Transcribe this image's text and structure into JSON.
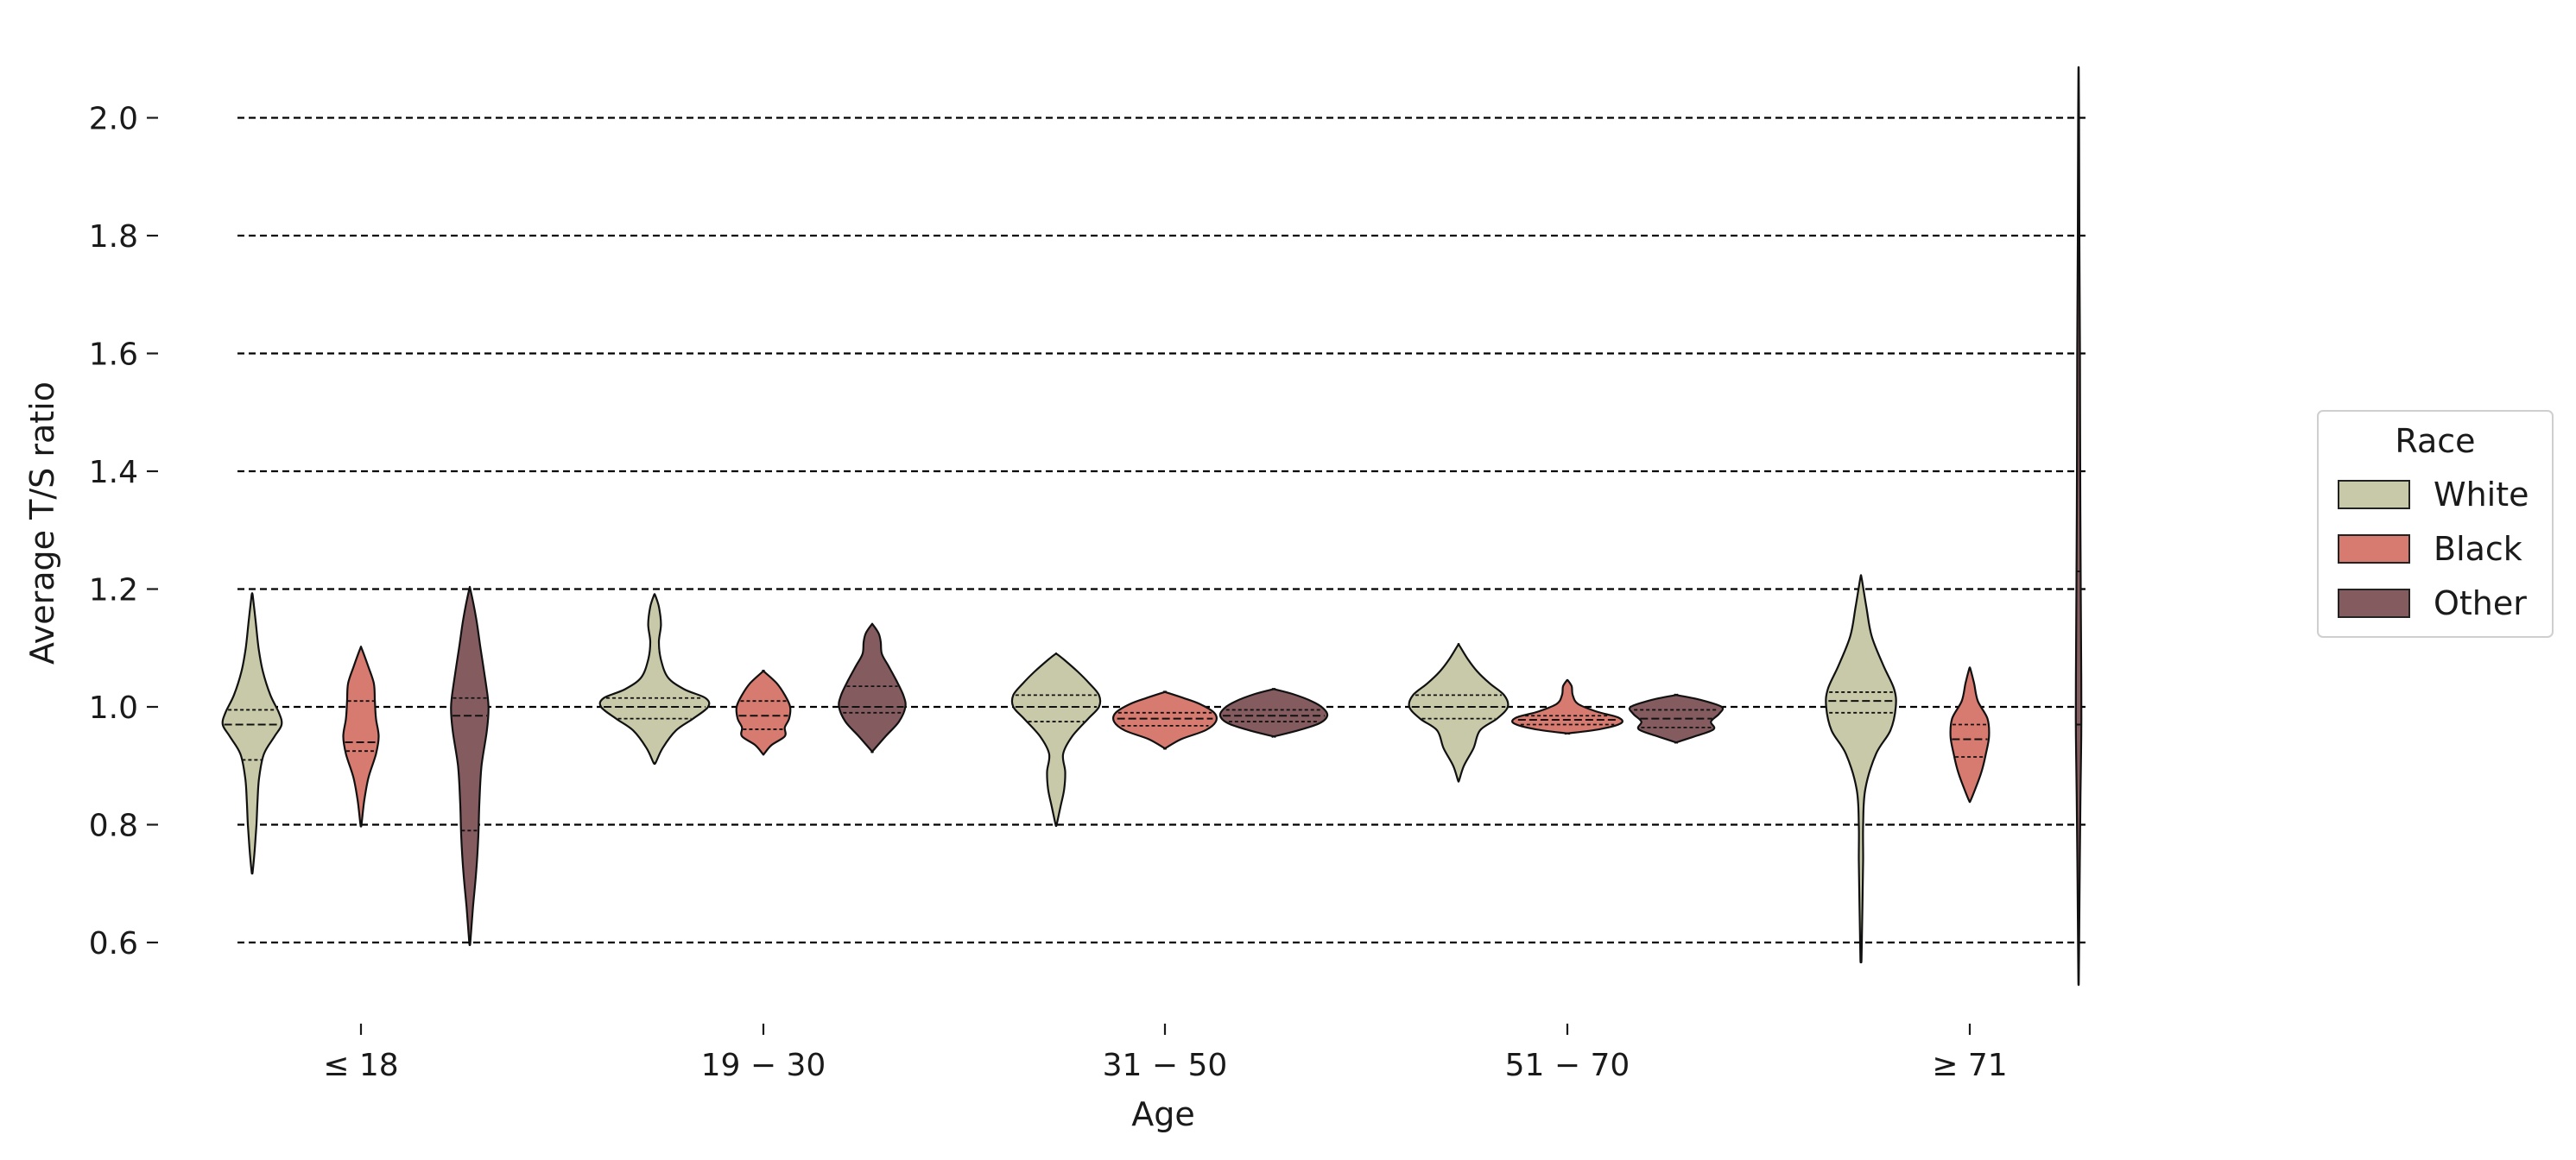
{
  "chart_data": {
    "type": "violin",
    "xlabel": "Age",
    "ylabel": "Average T/S ratio",
    "ylim": [
      0.55,
      2.12
    ],
    "yticks": [
      0.6,
      0.8,
      1.0,
      1.2,
      1.4,
      1.6,
      1.8,
      2.0
    ],
    "ytick_labels": [
      "0.6",
      "0.8",
      "1.0",
      "1.2",
      "1.4",
      "1.6",
      "1.8",
      "2.0"
    ],
    "grid": "horizontal dashed",
    "categories": [
      "≤ 18",
      "19 − 30",
      "31 − 50",
      "51 − 70",
      "≥ 71"
    ],
    "legend": {
      "title": "Race",
      "placement": "right",
      "entries": [
        {
          "name": "White",
          "color": "#c8c9a9"
        },
        {
          "name": "Black",
          "color": "#d77a6f"
        },
        {
          "name": "Other",
          "color": "#845c60"
        }
      ]
    },
    "series": [
      {
        "name": "White",
        "color": "#c8c9a9",
        "violins": [
          {
            "min": 0.72,
            "max": 1.19,
            "q1": 0.91,
            "median": 0.97,
            "q3": 0.995,
            "profile": [
              [
                0.72,
                0.01
              ],
              [
                0.76,
                0.05
              ],
              [
                0.8,
                0.08
              ],
              [
                0.84,
                0.1
              ],
              [
                0.88,
                0.13
              ],
              [
                0.92,
                0.22
              ],
              [
                0.95,
                0.42
              ],
              [
                0.97,
                0.55
              ],
              [
                0.99,
                0.5
              ],
              [
                1.02,
                0.34
              ],
              [
                1.06,
                0.2
              ],
              [
                1.1,
                0.12
              ],
              [
                1.15,
                0.06
              ],
              [
                1.19,
                0.01
              ]
            ]
          },
          {
            "min": 0.905,
            "max": 1.19,
            "q1": 0.98,
            "median": 1.0,
            "q3": 1.015,
            "profile": [
              [
                0.905,
                0.02
              ],
              [
                0.93,
                0.15
              ],
              [
                0.96,
                0.4
              ],
              [
                0.98,
                0.72
              ],
              [
                1.0,
                1.0
              ],
              [
                1.015,
                0.95
              ],
              [
                1.03,
                0.55
              ],
              [
                1.05,
                0.25
              ],
              [
                1.08,
                0.12
              ],
              [
                1.11,
                0.08
              ],
              [
                1.14,
                0.12
              ],
              [
                1.17,
                0.08
              ],
              [
                1.19,
                0.01
              ]
            ]
          },
          {
            "min": 0.8,
            "max": 1.09,
            "q1": 0.975,
            "median": 1.0,
            "q3": 1.02,
            "profile": [
              [
                0.8,
                0.01
              ],
              [
                0.83,
                0.08
              ],
              [
                0.86,
                0.15
              ],
              [
                0.89,
                0.17
              ],
              [
                0.92,
                0.13
              ],
              [
                0.95,
                0.3
              ],
              [
                0.98,
                0.6
              ],
              [
                1.0,
                0.8
              ],
              [
                1.02,
                0.8
              ],
              [
                1.04,
                0.62
              ],
              [
                1.06,
                0.4
              ],
              [
                1.08,
                0.15
              ],
              [
                1.09,
                0.01
              ]
            ]
          },
          {
            "min": 0.875,
            "max": 1.105,
            "q1": 0.98,
            "median": 1.0,
            "q3": 1.02,
            "profile": [
              [
                0.875,
                0.01
              ],
              [
                0.9,
                0.1
              ],
              [
                0.93,
                0.28
              ],
              [
                0.96,
                0.4
              ],
              [
                0.98,
                0.72
              ],
              [
                1.0,
                0.92
              ],
              [
                1.02,
                0.85
              ],
              [
                1.04,
                0.58
              ],
              [
                1.06,
                0.35
              ],
              [
                1.08,
                0.18
              ],
              [
                1.105,
                0.01
              ]
            ]
          },
          {
            "min": 0.57,
            "max": 1.22,
            "q1": 0.99,
            "median": 1.01,
            "q3": 1.025,
            "profile": [
              [
                0.57,
                0.01
              ],
              [
                0.62,
                0.02
              ],
              [
                0.68,
                0.03
              ],
              [
                0.74,
                0.04
              ],
              [
                0.8,
                0.04
              ],
              [
                0.86,
                0.08
              ],
              [
                0.92,
                0.28
              ],
              [
                0.96,
                0.55
              ],
              [
                1.0,
                0.65
              ],
              [
                1.03,
                0.62
              ],
              [
                1.07,
                0.42
              ],
              [
                1.12,
                0.2
              ],
              [
                1.17,
                0.1
              ],
              [
                1.22,
                0.01
              ]
            ]
          }
        ]
      },
      {
        "name": "Black",
        "color": "#d77a6f",
        "violins": [
          {
            "min": 0.8,
            "max": 1.1,
            "q1": 0.925,
            "median": 0.94,
            "q3": 1.01,
            "profile": [
              [
                0.8,
                0.01
              ],
              [
                0.84,
                0.06
              ],
              [
                0.88,
                0.14
              ],
              [
                0.92,
                0.28
              ],
              [
                0.95,
                0.33
              ],
              [
                0.98,
                0.28
              ],
              [
                1.01,
                0.26
              ],
              [
                1.04,
                0.24
              ],
              [
                1.07,
                0.13
              ],
              [
                1.1,
                0.01
              ]
            ]
          },
          {
            "min": 0.92,
            "max": 1.06,
            "q1": 0.962,
            "median": 0.985,
            "q3": 1.01,
            "profile": [
              [
                0.92,
                0.01
              ],
              [
                0.935,
                0.15
              ],
              [
                0.95,
                0.4
              ],
              [
                0.965,
                0.4
              ],
              [
                0.98,
                0.48
              ],
              [
                1.0,
                0.5
              ],
              [
                1.02,
                0.4
              ],
              [
                1.04,
                0.25
              ],
              [
                1.06,
                0.01
              ]
            ]
          },
          {
            "min": 0.93,
            "max": 1.025,
            "q1": 0.968,
            "median": 0.98,
            "q3": 0.99,
            "profile": [
              [
                0.93,
                0.01
              ],
              [
                0.945,
                0.3
              ],
              [
                0.96,
                0.75
              ],
              [
                0.975,
                0.95
              ],
              [
                0.99,
                0.92
              ],
              [
                1.005,
                0.65
              ],
              [
                1.015,
                0.35
              ],
              [
                1.025,
                0.01
              ]
            ]
          },
          {
            "min": 0.955,
            "max": 1.045,
            "q1": 0.97,
            "median": 0.978,
            "q3": 0.985,
            "profile": [
              [
                0.955,
                0.01
              ],
              [
                0.962,
                0.6
              ],
              [
                0.972,
                1.0
              ],
              [
                0.982,
                0.95
              ],
              [
                0.992,
                0.55
              ],
              [
                1.005,
                0.2
              ],
              [
                1.02,
                0.1
              ],
              [
                1.035,
                0.08
              ],
              [
                1.045,
                0.01
              ]
            ]
          },
          {
            "min": 0.84,
            "max": 1.065,
            "q1": 0.915,
            "median": 0.945,
            "q3": 0.97,
            "profile": [
              [
                0.84,
                0.01
              ],
              [
                0.86,
                0.1
              ],
              [
                0.89,
                0.22
              ],
              [
                0.92,
                0.3
              ],
              [
                0.95,
                0.36
              ],
              [
                0.98,
                0.33
              ],
              [
                1.01,
                0.15
              ],
              [
                1.04,
                0.08
              ],
              [
                1.065,
                0.01
              ]
            ]
          }
        ]
      },
      {
        "name": "Other",
        "color": "#845c60",
        "violins": [
          {
            "min": 0.6,
            "max": 1.2,
            "q1": 0.79,
            "median": 0.985,
            "q3": 1.015,
            "profile": [
              [
                0.6,
                0.01
              ],
              [
                0.66,
                0.06
              ],
              [
                0.72,
                0.12
              ],
              [
                0.78,
                0.16
              ],
              [
                0.84,
                0.18
              ],
              [
                0.9,
                0.22
              ],
              [
                0.96,
                0.32
              ],
              [
                1.0,
                0.35
              ],
              [
                1.04,
                0.3
              ],
              [
                1.1,
                0.2
              ],
              [
                1.15,
                0.12
              ],
              [
                1.2,
                0.01
              ]
            ]
          },
          {
            "min": 0.925,
            "max": 1.14,
            "q1": 0.99,
            "median": 1.0,
            "q3": 1.035,
            "profile": [
              [
                0.925,
                0.01
              ],
              [
                0.95,
                0.25
              ],
              [
                0.975,
                0.5
              ],
              [
                1.0,
                0.62
              ],
              [
                1.02,
                0.58
              ],
              [
                1.045,
                0.45
              ],
              [
                1.07,
                0.3
              ],
              [
                1.09,
                0.18
              ],
              [
                1.11,
                0.16
              ],
              [
                1.125,
                0.12
              ],
              [
                1.14,
                0.01
              ]
            ]
          },
          {
            "min": 0.95,
            "max": 1.03,
            "q1": 0.975,
            "median": 0.985,
            "q3": 0.995,
            "profile": [
              [
                0.95,
                0.01
              ],
              [
                0.96,
                0.45
              ],
              [
                0.972,
                0.85
              ],
              [
                0.985,
                1.0
              ],
              [
                0.998,
                0.92
              ],
              [
                1.01,
                0.7
              ],
              [
                1.022,
                0.35
              ],
              [
                1.03,
                0.01
              ]
            ]
          },
          {
            "min": 0.94,
            "max": 1.02,
            "q1": 0.965,
            "median": 0.98,
            "q3": 0.995,
            "profile": [
              [
                0.94,
                0.01
              ],
              [
                0.95,
                0.35
              ],
              [
                0.962,
                0.7
              ],
              [
                0.975,
                0.65
              ],
              [
                0.988,
                0.8
              ],
              [
                1.0,
                0.85
              ],
              [
                1.012,
                0.45
              ],
              [
                1.02,
                0.01
              ]
            ]
          },
          {
            "min": 0.54,
            "max": 2.08,
            "q1": 0.97,
            "median": 0.97,
            "q3": 1.23,
            "profile": [
              [
                0.54,
                0.005
              ],
              [
                0.7,
                0.02
              ],
              [
                0.85,
                0.035
              ],
              [
                0.95,
                0.05
              ],
              [
                1.05,
                0.05
              ],
              [
                1.2,
                0.04
              ],
              [
                1.4,
                0.03
              ],
              [
                1.6,
                0.025
              ],
              [
                1.8,
                0.015
              ],
              [
                2.0,
                0.008
              ],
              [
                2.08,
                0.003
              ]
            ]
          }
        ]
      }
    ]
  }
}
